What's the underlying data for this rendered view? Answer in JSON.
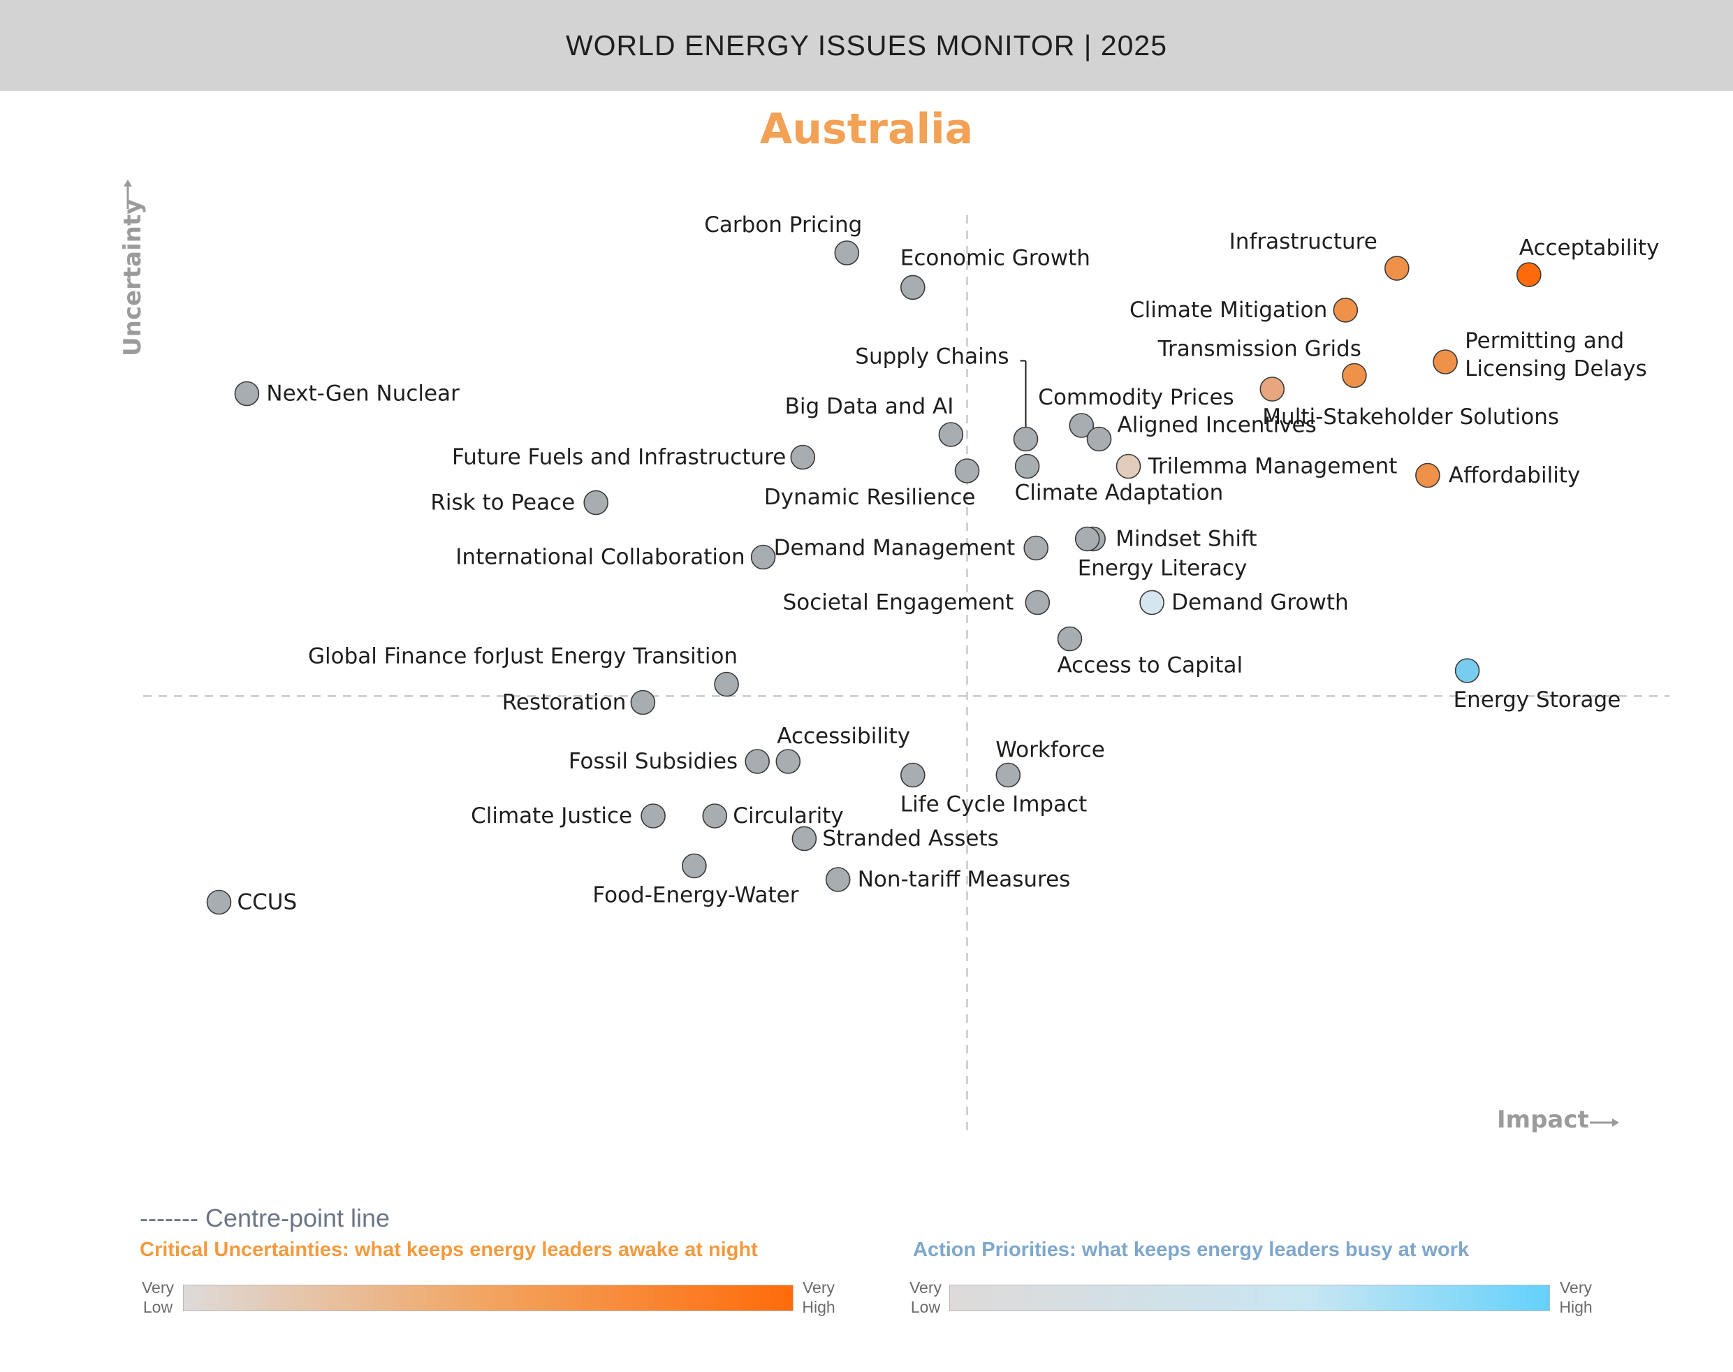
{
  "header": {
    "title": "WORLD ENERGY ISSUES MONITOR | 2025"
  },
  "country": "Australia",
  "axes": {
    "y_label": "Uncertainty",
    "x_label": "Impact",
    "arrow": "arrow-right-icon"
  },
  "colors": {
    "neutral": "#a7adb0",
    "critical_very_high": "#ff6b0a",
    "critical_high": "#f0914a",
    "critical_mid": "#e7a67e",
    "critical_low": "#e2cdbc",
    "action_low": "#d6e6ef",
    "action_high": "#77ccef",
    "centre_line": "#c8c8c8"
  },
  "legend": {
    "centre_line": "------- Centre-point line",
    "critical_title": "Critical Uncertainties: what keeps energy leaders awake at night",
    "action_title": "Action Priorities: what keeps energy leaders busy at work",
    "very_low": "Very Low",
    "very_high": "Very High"
  },
  "chart_data": {
    "type": "scatter",
    "title": "Australia",
    "xlabel": "Impact",
    "ylabel": "Uncertainty",
    "xlim": [
      0,
      100
    ],
    "ylim": [
      0,
      100
    ],
    "centre": {
      "x": 54.5,
      "y": 47.2
    },
    "points": [
      {
        "name": "Acceptability",
        "x": 92.8,
        "y": 93.6,
        "color": "#ff6b0a"
      },
      {
        "name": "Infrastructure",
        "x": 83.8,
        "y": 94.3,
        "color": "#f0914a"
      },
      {
        "name": "Climate Mitigation",
        "x": 80.3,
        "y": 89.7,
        "color": "#f0914a"
      },
      {
        "name": "Transmission Grids",
        "x": 80.9,
        "y": 82.5,
        "color": "#f0914a"
      },
      {
        "name": "Permitting and Licensing Delays",
        "x": 87.1,
        "y": 84.0,
        "color": "#f0914a"
      },
      {
        "name": "Multi-Stakeholder Solutions",
        "x": 75.3,
        "y": 81.0,
        "color": "#e7a67e"
      },
      {
        "name": "Affordability",
        "x": 85.9,
        "y": 71.5,
        "color": "#f0914a"
      },
      {
        "name": "Trilemma Management",
        "x": 65.5,
        "y": 72.5,
        "color": "#e2cdbc"
      },
      {
        "name": "Carbon Pricing",
        "x": 46.3,
        "y": 96.0,
        "color": "#a7adb0"
      },
      {
        "name": "Economic Growth",
        "x": 50.8,
        "y": 92.2,
        "color": "#a7adb0"
      },
      {
        "name": "Next-Gen Nuclear",
        "x": 5.4,
        "y": 80.5,
        "color": "#a7adb0"
      },
      {
        "name": "Supply Chains",
        "x": 58.5,
        "y": 75.5,
        "color": "#a7adb0"
      },
      {
        "name": "Commodity Prices",
        "x": 62.3,
        "y": 77.0,
        "color": "#a7adb0"
      },
      {
        "name": "Aligned Incentives",
        "x": 63.5,
        "y": 75.5,
        "color": "#a7adb0"
      },
      {
        "name": "Big Data and AI",
        "x": 53.4,
        "y": 76.0,
        "color": "#a7adb0"
      },
      {
        "name": "Future Fuels and Infrastructure",
        "x": 43.3,
        "y": 73.5,
        "color": "#a7adb0"
      },
      {
        "name": "Dynamic Resilience",
        "x": 54.5,
        "y": 72.0,
        "color": "#a7adb0"
      },
      {
        "name": "Climate Adaptation",
        "x": 58.6,
        "y": 72.5,
        "color": "#a7adb0"
      },
      {
        "name": "Risk to Peace",
        "x": 29.2,
        "y": 68.5,
        "color": "#a7adb0"
      },
      {
        "name": "Demand Management",
        "x": 59.2,
        "y": 63.5,
        "color": "#a7adb0"
      },
      {
        "name": "Mindset Shift",
        "x": 63.1,
        "y": 64.5,
        "color": "#a7adb0"
      },
      {
        "name": "Energy Literacy",
        "x": 62.7,
        "y": 64.5,
        "color": "#a7adb0"
      },
      {
        "name": "International Collaboration",
        "x": 40.6,
        "y": 62.5,
        "color": "#a7adb0"
      },
      {
        "name": "Societal Engagement",
        "x": 59.3,
        "y": 57.5,
        "color": "#a7adb0"
      },
      {
        "name": "Demand Growth",
        "x": 67.1,
        "y": 57.5,
        "color": "#d6e6ef"
      },
      {
        "name": "Access to Capital",
        "x": 61.5,
        "y": 53.5,
        "color": "#a7adb0"
      },
      {
        "name": "Energy Storage",
        "x": 88.6,
        "y": 50.0,
        "color": "#77ccef"
      },
      {
        "name": "Global Finance forJust Energy Transition",
        "x": 38.1,
        "y": 48.5,
        "color": "#a7adb0"
      },
      {
        "name": "Restoration",
        "x": 32.4,
        "y": 46.5,
        "color": "#a7adb0"
      },
      {
        "name": "Fossil Subsidies",
        "x": 40.2,
        "y": 40.0,
        "color": "#a7adb0"
      },
      {
        "name": "Accessibility",
        "x": 42.3,
        "y": 40.0,
        "color": "#a7adb0"
      },
      {
        "name": "Life Cycle Impact",
        "x": 50.8,
        "y": 38.5,
        "color": "#a7adb0"
      },
      {
        "name": "Workforce",
        "x": 57.3,
        "y": 38.5,
        "color": "#a7adb0"
      },
      {
        "name": "Climate Justice",
        "x": 33.1,
        "y": 34.0,
        "color": "#a7adb0"
      },
      {
        "name": "Circularity",
        "x": 37.3,
        "y": 34.0,
        "color": "#a7adb0"
      },
      {
        "name": "Stranded Assets",
        "x": 43.4,
        "y": 31.5,
        "color": "#a7adb0"
      },
      {
        "name": "Food-Energy-Water",
        "x": 35.9,
        "y": 28.5,
        "color": "#a7adb0"
      },
      {
        "name": "Non-tariff Measures",
        "x": 45.7,
        "y": 27.0,
        "color": "#a7adb0"
      },
      {
        "name": "CCUS",
        "x": 3.5,
        "y": 24.5,
        "color": "#a7adb0"
      }
    ]
  }
}
